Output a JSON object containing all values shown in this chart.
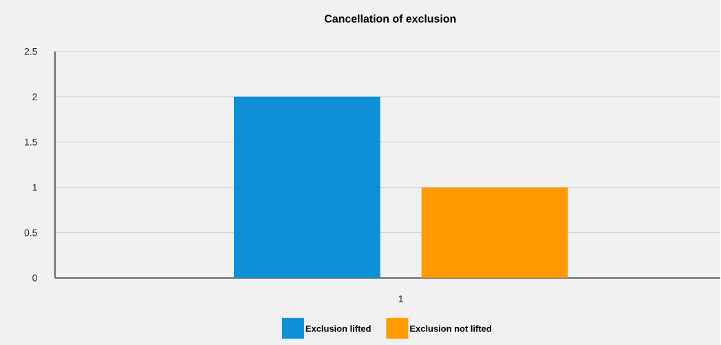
{
  "chart_data": {
    "type": "bar",
    "title": "Cancellation of exclusion",
    "categories": [
      "1"
    ],
    "series": [
      {
        "name": "Exclusion lifted",
        "color": "#0f8fd6",
        "values": [
          2
        ]
      },
      {
        "name": "Exclusion not lifted",
        "color": "#ff9a00",
        "values": [
          1
        ]
      }
    ],
    "ylim": [
      0,
      2.5
    ],
    "yticks": [
      0,
      0.5,
      1,
      1.5,
      2,
      2.5
    ],
    "grid": "y",
    "legend": "bottom"
  }
}
